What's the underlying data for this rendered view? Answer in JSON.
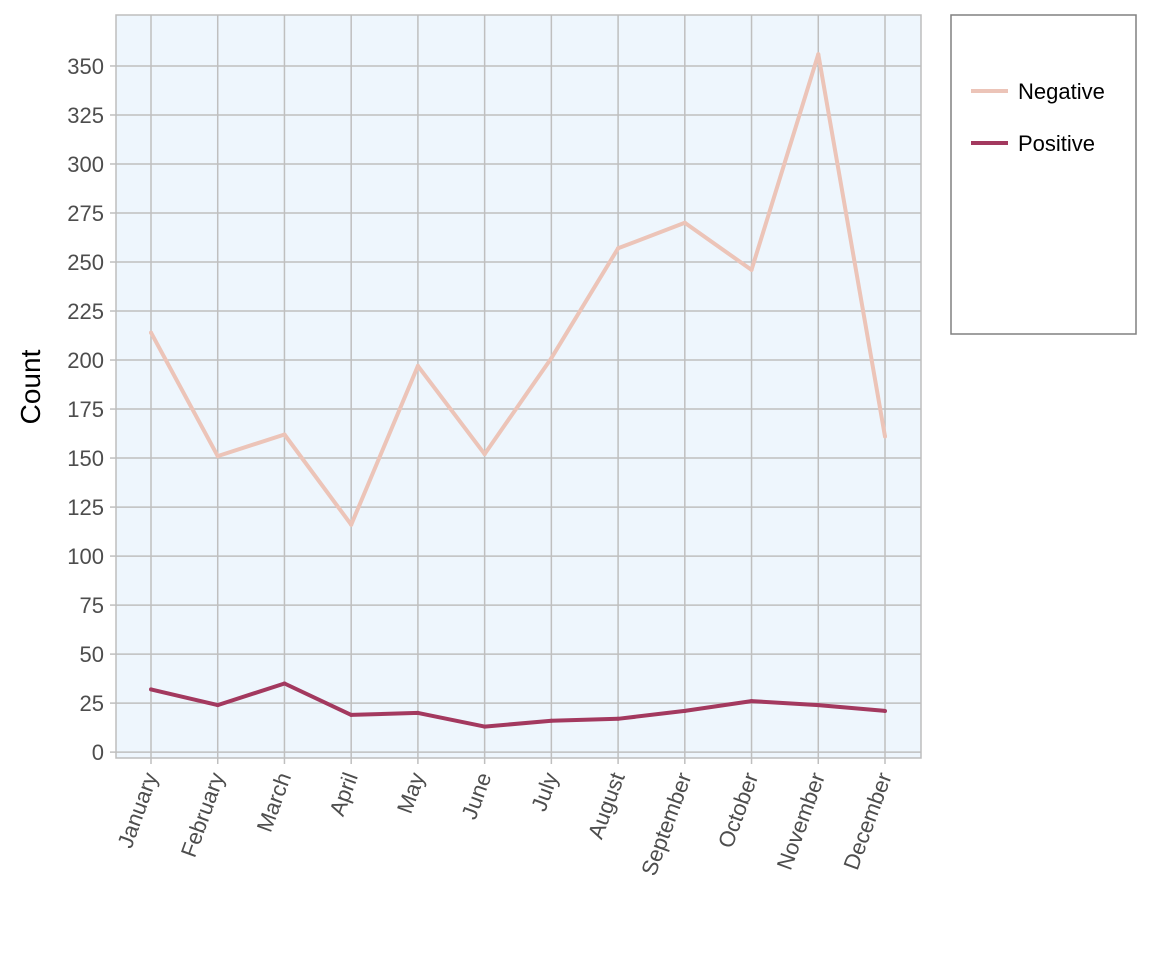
{
  "chart_data": {
    "type": "line",
    "title": "",
    "xlabel": "",
    "ylabel": "Count",
    "categories": [
      "January",
      "February",
      "March",
      "April",
      "May",
      "June",
      "July",
      "August",
      "September",
      "October",
      "November",
      "December"
    ],
    "series": [
      {
        "name": "Negative",
        "color": "#ecc4b8",
        "values": [
          214,
          151,
          162,
          116,
          197,
          152,
          201,
          257,
          270,
          246,
          356,
          161
        ]
      },
      {
        "name": "Positive",
        "color": "#a3395f",
        "values": [
          32,
          24,
          35,
          19,
          20,
          13,
          16,
          17,
          21,
          26,
          24,
          21
        ]
      }
    ],
    "ylim": [
      -3,
      376
    ],
    "yticks": [
      0,
      25,
      50,
      75,
      100,
      125,
      150,
      175,
      200,
      225,
      250,
      275,
      300,
      325,
      350
    ],
    "grid": true,
    "legend_position": "right",
    "plot_background": "#eef6fd",
    "grid_color": "#bfbfbf"
  }
}
